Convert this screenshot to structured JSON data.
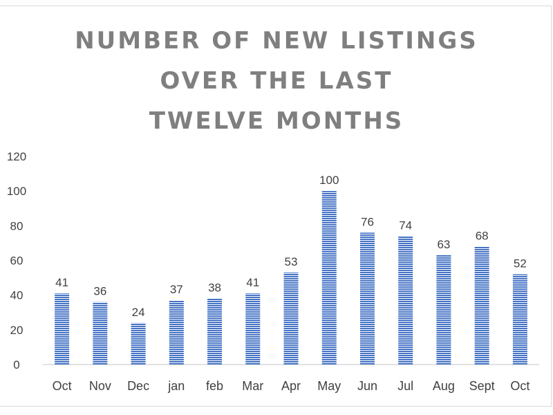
{
  "chart_data": {
    "type": "bar",
    "title_lines": [
      "NUMBER OF NEW LISTINGS",
      "OVER THE LAST",
      "TWELVE MONTHS"
    ],
    "categories": [
      "Oct",
      "Nov",
      "Dec",
      "jan",
      "feb",
      "Mar",
      "Apr",
      "May",
      "Jun",
      "Jul",
      "Aug",
      "Sept",
      "Oct"
    ],
    "values": [
      41,
      36,
      24,
      37,
      38,
      41,
      53,
      100,
      76,
      74,
      63,
      68,
      52
    ],
    "ylim": [
      0,
      120
    ],
    "yticks": [
      0,
      20,
      40,
      60,
      80,
      100,
      120
    ],
    "xlabel": "",
    "ylabel": "",
    "grid": false,
    "legend": "none",
    "data_labels": true,
    "bar_color": "#4472c4",
    "bar_pattern": "horizontal-stripes"
  }
}
